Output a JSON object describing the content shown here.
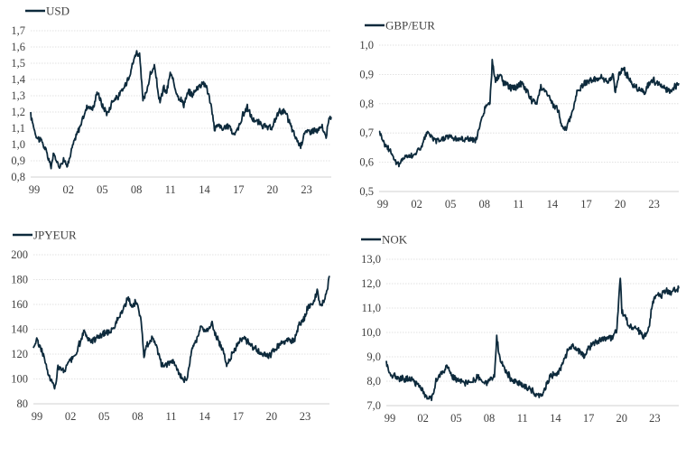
{
  "line_color": "#0d2a3c",
  "chart_data": [
    {
      "type": "line",
      "title": "",
      "legend": [
        "USD"
      ],
      "legend_placement": "top-left",
      "xlabel": "",
      "ylabel": "",
      "x_tick_labels": [
        "99",
        "02",
        "05",
        "08",
        "11",
        "14",
        "17",
        "20",
        "23"
      ],
      "x_range": [
        1999,
        2025.5
      ],
      "y_tick_labels": [
        "0,8",
        "0,9",
        "1,0",
        "1,1",
        "1,2",
        "1,3",
        "1,4",
        "1,5",
        "1,6",
        "1,7"
      ],
      "ylim": [
        0.8,
        1.7
      ],
      "grid": true,
      "series": [
        {
          "name": "USD",
          "x": [
            1999.0,
            1999.5,
            2000.0,
            2000.5,
            2000.8,
            2001.0,
            2001.5,
            2001.9,
            2002.3,
            2002.7,
            2003.0,
            2003.5,
            2004.0,
            2004.5,
            2004.9,
            2005.3,
            2005.8,
            2006.2,
            2006.8,
            2007.3,
            2007.8,
            2008.3,
            2008.6,
            2008.9,
            2009.2,
            2009.5,
            2009.9,
            2010.4,
            2010.7,
            2011.0,
            2011.3,
            2011.7,
            2012.0,
            2012.5,
            2012.9,
            2013.3,
            2013.8,
            2014.2,
            2014.5,
            2014.9,
            2015.2,
            2015.6,
            2016.0,
            2016.5,
            2016.9,
            2017.3,
            2017.7,
            2018.1,
            2018.5,
            2018.9,
            2019.4,
            2019.9,
            2020.3,
            2020.7,
            2021.0,
            2021.4,
            2021.8,
            2022.3,
            2022.8,
            2023.1,
            2023.5,
            2023.9,
            2024.3,
            2024.7,
            2025.0,
            2025.3,
            2025.5
          ],
          "y": [
            1.18,
            1.05,
            1.02,
            0.93,
            0.86,
            0.94,
            0.87,
            0.9,
            0.88,
            0.99,
            1.05,
            1.14,
            1.24,
            1.22,
            1.33,
            1.24,
            1.19,
            1.27,
            1.3,
            1.36,
            1.45,
            1.57,
            1.55,
            1.27,
            1.32,
            1.42,
            1.48,
            1.25,
            1.35,
            1.32,
            1.44,
            1.36,
            1.3,
            1.25,
            1.32,
            1.31,
            1.36,
            1.38,
            1.36,
            1.24,
            1.1,
            1.12,
            1.09,
            1.12,
            1.06,
            1.1,
            1.18,
            1.23,
            1.16,
            1.14,
            1.12,
            1.1,
            1.1,
            1.18,
            1.21,
            1.2,
            1.14,
            1.05,
            0.99,
            1.07,
            1.08,
            1.09,
            1.08,
            1.11,
            1.04,
            1.15,
            1.17
          ]
        }
      ]
    },
    {
      "type": "line",
      "title": "",
      "legend": [
        "GBP/EUR"
      ],
      "legend_placement": "top-left",
      "xlabel": "",
      "ylabel": "",
      "x_tick_labels": [
        "99",
        "02",
        "05",
        "08",
        "11",
        "14",
        "17",
        "20",
        "23"
      ],
      "x_range": [
        1999,
        2025.5
      ],
      "y_tick_labels": [
        "0,5",
        "0,6",
        "0,7",
        "0,8",
        "0,9",
        "1,0"
      ],
      "ylim": [
        0.5,
        1.0
      ],
      "grid": true,
      "series": [
        {
          "name": "GBP/EUR",
          "x": [
            1999.0,
            1999.5,
            2000.0,
            2000.5,
            2000.8,
            2001.2,
            2001.7,
            2002.2,
            2002.7,
            2003.2,
            2003.6,
            2004.0,
            2004.6,
            2005.2,
            2005.8,
            2006.4,
            2007.0,
            2007.5,
            2007.9,
            2008.4,
            2008.8,
            2009.0,
            2009.3,
            2009.7,
            2010.0,
            2010.5,
            2010.9,
            2011.5,
            2012.0,
            2012.5,
            2012.9,
            2013.3,
            2013.8,
            2014.3,
            2014.8,
            2015.3,
            2015.6,
            2016.0,
            2016.5,
            2016.9,
            2017.5,
            2018.0,
            2018.6,
            2019.2,
            2019.7,
            2019.9,
            2020.2,
            2020.6,
            2021.0,
            2021.5,
            2022.0,
            2022.5,
            2022.9,
            2023.3,
            2023.8,
            2024.3,
            2024.8,
            2025.2,
            2025.5
          ],
          "y": [
            0.71,
            0.66,
            0.64,
            0.6,
            0.59,
            0.62,
            0.62,
            0.63,
            0.65,
            0.7,
            0.69,
            0.67,
            0.68,
            0.69,
            0.68,
            0.68,
            0.68,
            0.67,
            0.72,
            0.79,
            0.8,
            0.94,
            0.88,
            0.9,
            0.87,
            0.86,
            0.85,
            0.87,
            0.85,
            0.81,
            0.8,
            0.86,
            0.84,
            0.8,
            0.78,
            0.71,
            0.72,
            0.76,
            0.84,
            0.86,
            0.88,
            0.88,
            0.89,
            0.87,
            0.9,
            0.84,
            0.9,
            0.92,
            0.89,
            0.86,
            0.85,
            0.84,
            0.87,
            0.88,
            0.86,
            0.85,
            0.84,
            0.86,
            0.87
          ]
        }
      ]
    },
    {
      "type": "line",
      "title": "",
      "legend": [
        "JPYEUR"
      ],
      "legend_placement": "top-left",
      "xlabel": "",
      "ylabel": "",
      "x_tick_labels": [
        "99",
        "02",
        "05",
        "08",
        "11",
        "14",
        "17",
        "20",
        "23"
      ],
      "x_range": [
        1999,
        2025.5
      ],
      "y_tick_labels": [
        "80",
        "100",
        "120",
        "140",
        "160",
        "180",
        "200"
      ],
      "ylim": [
        80,
        200
      ],
      "grid": true,
      "series": [
        {
          "name": "JPYEUR",
          "x": [
            1999.0,
            1999.3,
            1999.8,
            2000.3,
            2000.7,
            2000.9,
            2001.2,
            2001.7,
            2002.2,
            2002.7,
            2003.2,
            2003.6,
            2004.0,
            2004.6,
            2005.2,
            2005.8,
            2006.4,
            2007.0,
            2007.5,
            2007.8,
            2008.2,
            2008.6,
            2008.9,
            2009.2,
            2009.6,
            2010.0,
            2010.5,
            2010.9,
            2011.5,
            2012.0,
            2012.4,
            2012.8,
            2013.2,
            2013.6,
            2014.0,
            2014.6,
            2015.0,
            2015.4,
            2015.9,
            2016.3,
            2016.8,
            2017.4,
            2017.9,
            2018.4,
            2018.9,
            2019.4,
            2019.9,
            2020.3,
            2020.8,
            2021.3,
            2021.8,
            2022.3,
            2022.8,
            2023.2,
            2023.6,
            2024.0,
            2024.4,
            2024.7,
            2025.0,
            2025.3,
            2025.5
          ],
          "y": [
            125,
            132,
            122,
            105,
            97,
            92,
            110,
            106,
            114,
            118,
            130,
            138,
            130,
            133,
            136,
            138,
            145,
            155,
            165,
            158,
            162,
            150,
            118,
            128,
            133,
            128,
            110,
            112,
            115,
            105,
            98,
            102,
            125,
            132,
            142,
            138,
            145,
            133,
            125,
            112,
            120,
            130,
            133,
            128,
            124,
            120,
            118,
            120,
            126,
            130,
            131,
            130,
            143,
            148,
            158,
            160,
            170,
            158,
            162,
            172,
            183
          ]
        }
      ]
    },
    {
      "type": "line",
      "title": "",
      "legend": [
        "NOK"
      ],
      "legend_placement": "top-left",
      "xlabel": "",
      "ylabel": "",
      "x_tick_labels": [
        "99",
        "02",
        "05",
        "08",
        "11",
        "14",
        "17",
        "20",
        "23"
      ],
      "x_range": [
        1999,
        2025.5
      ],
      "y_tick_labels": [
        "7,0",
        "8,0",
        "9,0",
        "10,0",
        "11,0",
        "12,0",
        "13,0"
      ],
      "ylim": [
        7.0,
        13.0
      ],
      "grid": true,
      "series": [
        {
          "name": "NOK",
          "x": [
            1999.0,
            1999.3,
            1999.8,
            2000.5,
            2001.2,
            2001.8,
            2002.3,
            2002.7,
            2003.1,
            2003.5,
            2004.0,
            2004.5,
            2005.0,
            2005.6,
            2006.2,
            2006.8,
            2007.3,
            2007.8,
            2008.4,
            2008.8,
            2009.0,
            2009.3,
            2009.7,
            2010.3,
            2010.9,
            2011.5,
            2012.0,
            2012.5,
            2012.9,
            2013.3,
            2013.8,
            2014.3,
            2014.8,
            2015.2,
            2015.6,
            2016.0,
            2016.5,
            2016.9,
            2017.4,
            2017.9,
            2018.5,
            2019.0,
            2019.5,
            2019.9,
            2020.2,
            2020.35,
            2020.7,
            2021.0,
            2021.5,
            2022.0,
            2022.3,
            2022.8,
            2023.1,
            2023.5,
            2023.9,
            2024.3,
            2024.8,
            2025.2,
            2025.5
          ],
          "y": [
            8.8,
            8.3,
            8.2,
            8.1,
            8.1,
            7.9,
            7.6,
            7.3,
            7.3,
            8.0,
            8.3,
            8.6,
            8.2,
            8.0,
            7.9,
            8.0,
            8.2,
            7.9,
            8.0,
            8.2,
            9.8,
            8.9,
            8.5,
            8.1,
            7.9,
            7.8,
            7.7,
            7.5,
            7.4,
            7.6,
            8.2,
            8.3,
            8.5,
            9.0,
            9.4,
            9.4,
            9.2,
            9.0,
            9.4,
            9.6,
            9.7,
            9.8,
            9.8,
            10.1,
            12.3,
            10.8,
            10.6,
            10.2,
            10.2,
            10.0,
            9.8,
            10.2,
            11.2,
            11.6,
            11.5,
            11.7,
            11.6,
            11.8,
            11.8
          ]
        }
      ]
    }
  ]
}
